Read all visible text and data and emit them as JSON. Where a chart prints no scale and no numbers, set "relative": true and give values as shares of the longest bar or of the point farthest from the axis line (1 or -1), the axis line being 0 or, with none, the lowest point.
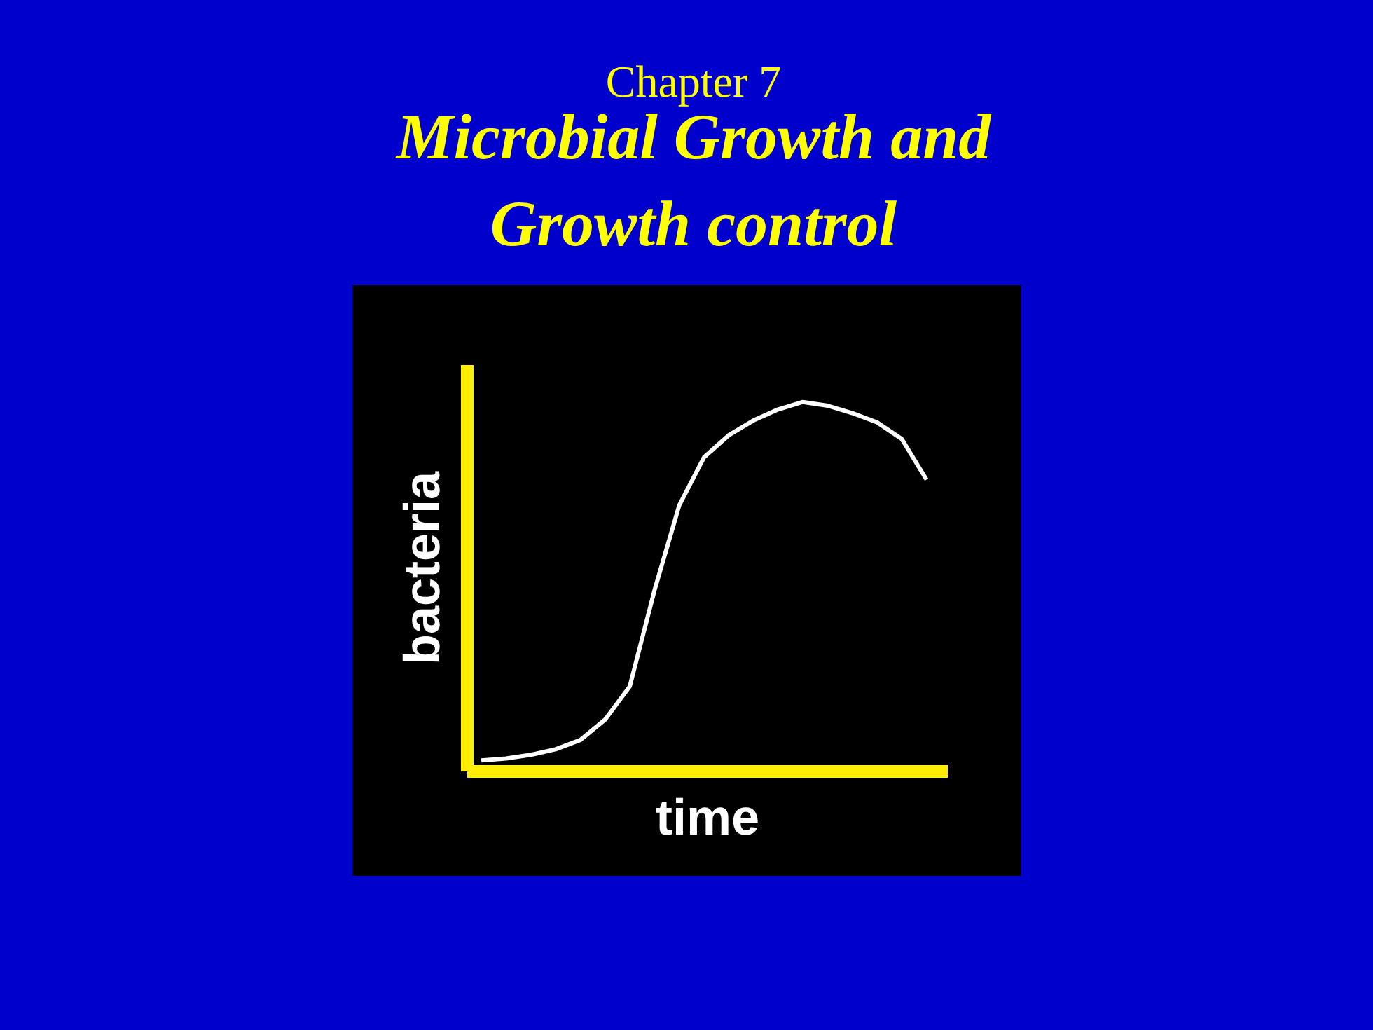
{
  "chart_data": {
    "type": "line",
    "subtitle": "Chapter 7",
    "title": "Microbial Growth and Growth control",
    "xlabel": "time",
    "ylabel": "bacteria",
    "relative": true,
    "color": "#ffffff",
    "categories": [
      null,
      null,
      null,
      null,
      null,
      null,
      null,
      null,
      null,
      null,
      null,
      null,
      null,
      null,
      null,
      null,
      null,
      null,
      null
    ],
    "values": [
      0.03,
      0.035,
      0.045,
      0.06,
      0.085,
      0.14,
      0.23,
      0.49,
      0.72,
      0.85,
      0.91,
      0.95,
      0.98,
      1.0,
      0.99,
      0.97,
      0.945,
      0.9,
      0.79
    ]
  }
}
